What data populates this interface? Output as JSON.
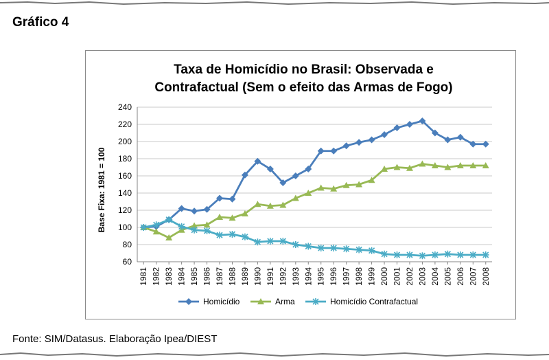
{
  "figure_label": "Gráfico 4",
  "source_note": "Fonte: SIM/Datasus. Elaboração Ipea/DIEST",
  "chart_data": {
    "type": "line",
    "title_line1": "Taxa de Homicídio no Brasil: Observada e",
    "title_line2": "Contrafactual (Sem o efeito das Armas de Fogo)",
    "xlabel": "",
    "ylabel": "Base Fixa: 1981 = 100",
    "ylim": [
      60,
      240
    ],
    "yticks": [
      60,
      80,
      100,
      120,
      140,
      160,
      180,
      200,
      220,
      240
    ],
    "grid": "horizontal",
    "legend_position": "bottom",
    "x": [
      "1981",
      "1982",
      "1983",
      "1984",
      "1985",
      "1986",
      "1987",
      "1988",
      "1989",
      "1990",
      "1991",
      "1992",
      "1993",
      "1994",
      "1995",
      "1996",
      "1997",
      "1998",
      "1999",
      "2000",
      "2001",
      "2002",
      "2003",
      "2004",
      "2005",
      "2006",
      "2007",
      "2008"
    ],
    "series": [
      {
        "name": "Homicídio",
        "color": "#4a7ebb",
        "marker": "diamond",
        "values": [
          100,
          101,
          109,
          122,
          119,
          121,
          134,
          133,
          161,
          177,
          168,
          152,
          160,
          168,
          189,
          189,
          195,
          199,
          202,
          208,
          216,
          220,
          224,
          210,
          202,
          205,
          197,
          197
        ]
      },
      {
        "name": "Arma",
        "color": "#98b954",
        "marker": "triangle",
        "values": [
          100,
          95,
          88,
          97,
          102,
          103,
          112,
          111,
          116,
          127,
          125,
          126,
          134,
          140,
          146,
          145,
          149,
          150,
          155,
          168,
          170,
          169,
          174,
          172,
          170,
          172,
          172,
          172
        ]
      },
      {
        "name": "Homicídio Contrafactual",
        "color": "#4bacc6",
        "marker": "asterisk",
        "values": [
          100,
          103,
          109,
          101,
          97,
          96,
          91,
          92,
          89,
          83,
          84,
          84,
          80,
          78,
          76,
          76,
          75,
          74,
          73,
          69,
          68,
          68,
          67,
          68,
          69,
          68,
          68,
          68
        ]
      }
    ]
  }
}
